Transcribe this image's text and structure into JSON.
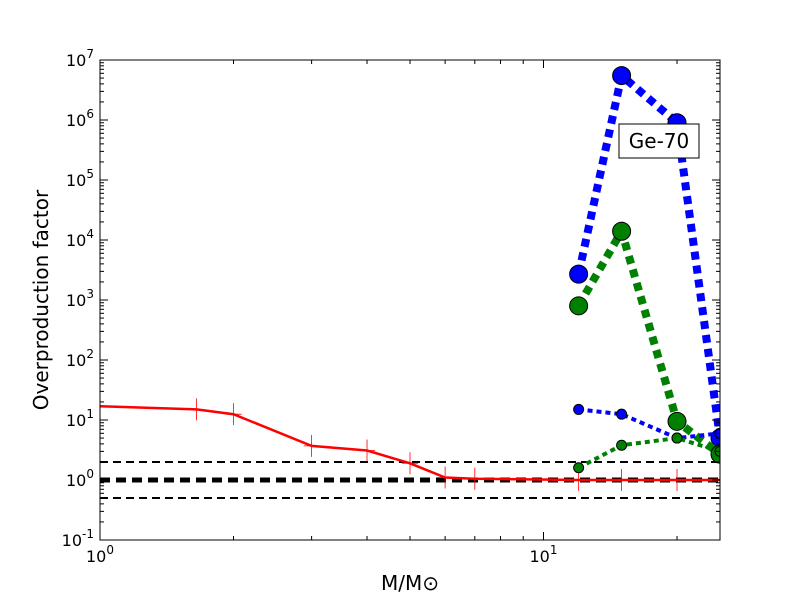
{
  "chart_data": {
    "type": "line",
    "xscale": "log",
    "yscale": "log",
    "xlim": [
      1,
      25
    ],
    "ylim": [
      0.1,
      10000000
    ],
    "xlabel": "M/M⊙",
    "ylabel": "Overproduction factor",
    "xticks": [
      {
        "value": 1,
        "base": "10",
        "exp": "0"
      },
      {
        "value": 10,
        "base": "10",
        "exp": "1"
      }
    ],
    "yticks": [
      {
        "value": 0.1,
        "base": "10",
        "exp": "-1"
      },
      {
        "value": 1,
        "base": "10",
        "exp": "0"
      },
      {
        "value": 10,
        "base": "10",
        "exp": "1"
      },
      {
        "value": 100,
        "base": "10",
        "exp": "2"
      },
      {
        "value": 1000,
        "base": "10",
        "exp": "3"
      },
      {
        "value": 10000,
        "base": "10",
        "exp": "4"
      },
      {
        "value": 100000,
        "base": "10",
        "exp": "5"
      },
      {
        "value": 1000000,
        "base": "10",
        "exp": "6"
      },
      {
        "value": 10000000,
        "base": "10",
        "exp": "7"
      }
    ],
    "annotation": "Ge-70",
    "series": [
      {
        "color": "#ff0000",
        "style": "solid",
        "marker": "plus",
        "width": 2.5,
        "x": [
          1.0,
          1.65,
          2.0,
          3.0,
          4.0,
          5.0,
          6.0,
          7.0,
          12.0,
          15.0,
          20.0,
          25.0
        ],
        "y": [
          17.0,
          15.0,
          12.5,
          3.7,
          3.1,
          1.9,
          1.1,
          1.05,
          1.0,
          1.0,
          1.0,
          1.0
        ]
      },
      {
        "color": "#0000ff",
        "style": "dotted",
        "marker": "circle",
        "width": 8,
        "marker_size": 9,
        "x": [
          12.0,
          15.0,
          20.0,
          25.0
        ],
        "y": [
          2700,
          5500000,
          900000,
          5.0
        ]
      },
      {
        "color": "#008000",
        "style": "dotted",
        "marker": "circle",
        "width": 8,
        "marker_size": 9,
        "x": [
          12.0,
          15.0,
          20.0,
          25.0
        ],
        "y": [
          800,
          14000,
          9.5,
          2.7
        ]
      },
      {
        "color": "#0000ff",
        "style": "dotted",
        "marker": "circle",
        "width": 4,
        "marker_size": 5,
        "x": [
          12.0,
          15.0,
          20.0,
          25.0
        ],
        "y": [
          15.0,
          12.5,
          5.0,
          6.0
        ]
      },
      {
        "color": "#008000",
        "style": "dotted",
        "marker": "circle",
        "width": 4,
        "marker_size": 5,
        "x": [
          12.0,
          15.0,
          20.0,
          25.0
        ],
        "y": [
          1.6,
          3.8,
          5.0,
          3.0
        ]
      }
    ],
    "reference_lines": [
      {
        "y": 2.0,
        "style": "dashed",
        "color": "#000000",
        "width": 2
      },
      {
        "y": 1.0,
        "style": "dashed",
        "color": "#000000",
        "width": 5
      },
      {
        "y": 0.5,
        "style": "dashed",
        "color": "#000000",
        "width": 2
      }
    ]
  }
}
